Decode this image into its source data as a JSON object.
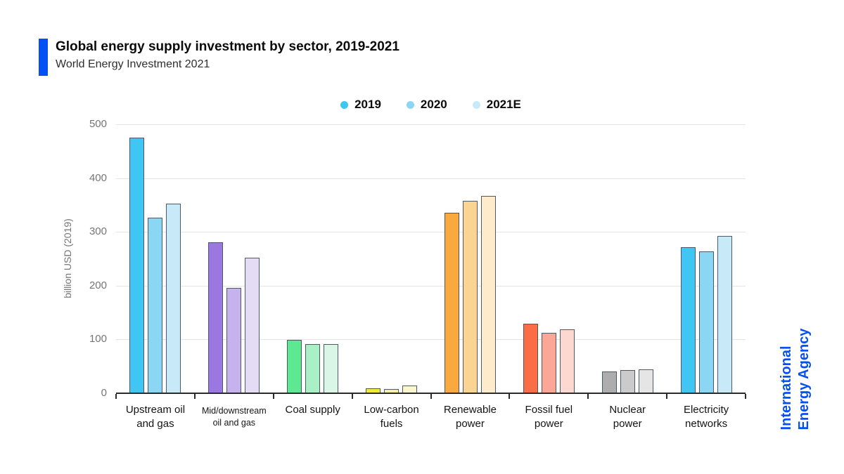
{
  "header": {
    "title": "Global energy supply investment by sector, 2019-2021",
    "subtitle": "World Energy Investment 2021",
    "accent_color": "#0550f2"
  },
  "legend": {
    "items": [
      {
        "label": "2019",
        "color": "#3fc6f2"
      },
      {
        "label": "2020",
        "color": "#8bd6f2"
      },
      {
        "label": "2021E",
        "color": "#c8eaf8"
      }
    ]
  },
  "branding": {
    "line1": "International",
    "line2": "Energy Agency",
    "color": "#0550f2"
  },
  "chart_data": {
    "type": "bar",
    "title": "Global energy supply investment by sector, 2019-2021",
    "subtitle": "World Energy Investment 2021",
    "ylabel": "billion USD (2019)",
    "ylim": [
      0,
      500
    ],
    "yticks": [
      0,
      100,
      200,
      300,
      400,
      500
    ],
    "grid": true,
    "legend_position": "top",
    "categories": [
      "Upstream oil\nand gas",
      "Mid/downstream\noil and gas",
      "Coal supply",
      "Low-carbon\nfuels",
      "Renewable\npower",
      "Fossil fuel\npower",
      "Nuclear\npower",
      "Electricity\nnetworks"
    ],
    "series": [
      {
        "name": "2019",
        "values": [
          475,
          281,
          99,
          9,
          336,
          129,
          40,
          272
        ]
      },
      {
        "name": "2020",
        "values": [
          327,
          196,
          91,
          8,
          358,
          112,
          43,
          264
        ]
      },
      {
        "name": "2021E",
        "values": [
          352,
          252,
          91,
          14,
          367,
          119,
          44,
          293
        ]
      }
    ],
    "category_colors": [
      [
        "#3fc6f2",
        "#8bd6f2",
        "#c8eaf8"
      ],
      [
        "#9b77e2",
        "#c6b2ec",
        "#e4dbf4"
      ],
      [
        "#5de992",
        "#a9f0c7",
        "#d9f6e7"
      ],
      [
        "#f4e73e",
        "#f5f0a4",
        "#faf6d0"
      ],
      [
        "#f9a93e",
        "#fbd392",
        "#fdebcb"
      ],
      [
        "#fb6d45",
        "#fca795",
        "#fdd8d0"
      ],
      [
        "#adadad",
        "#cbcbcb",
        "#e5e5e5"
      ]
    ],
    "electricity_networks_colors": [
      "#3fc6f2",
      "#8bd6f2",
      "#c8eaf8"
    ],
    "bar_outline_color": "#4e5a63",
    "gridline_color": "#e4e4e4",
    "axis_color": "#2b2b2b",
    "tick_label_color": "#757575"
  }
}
